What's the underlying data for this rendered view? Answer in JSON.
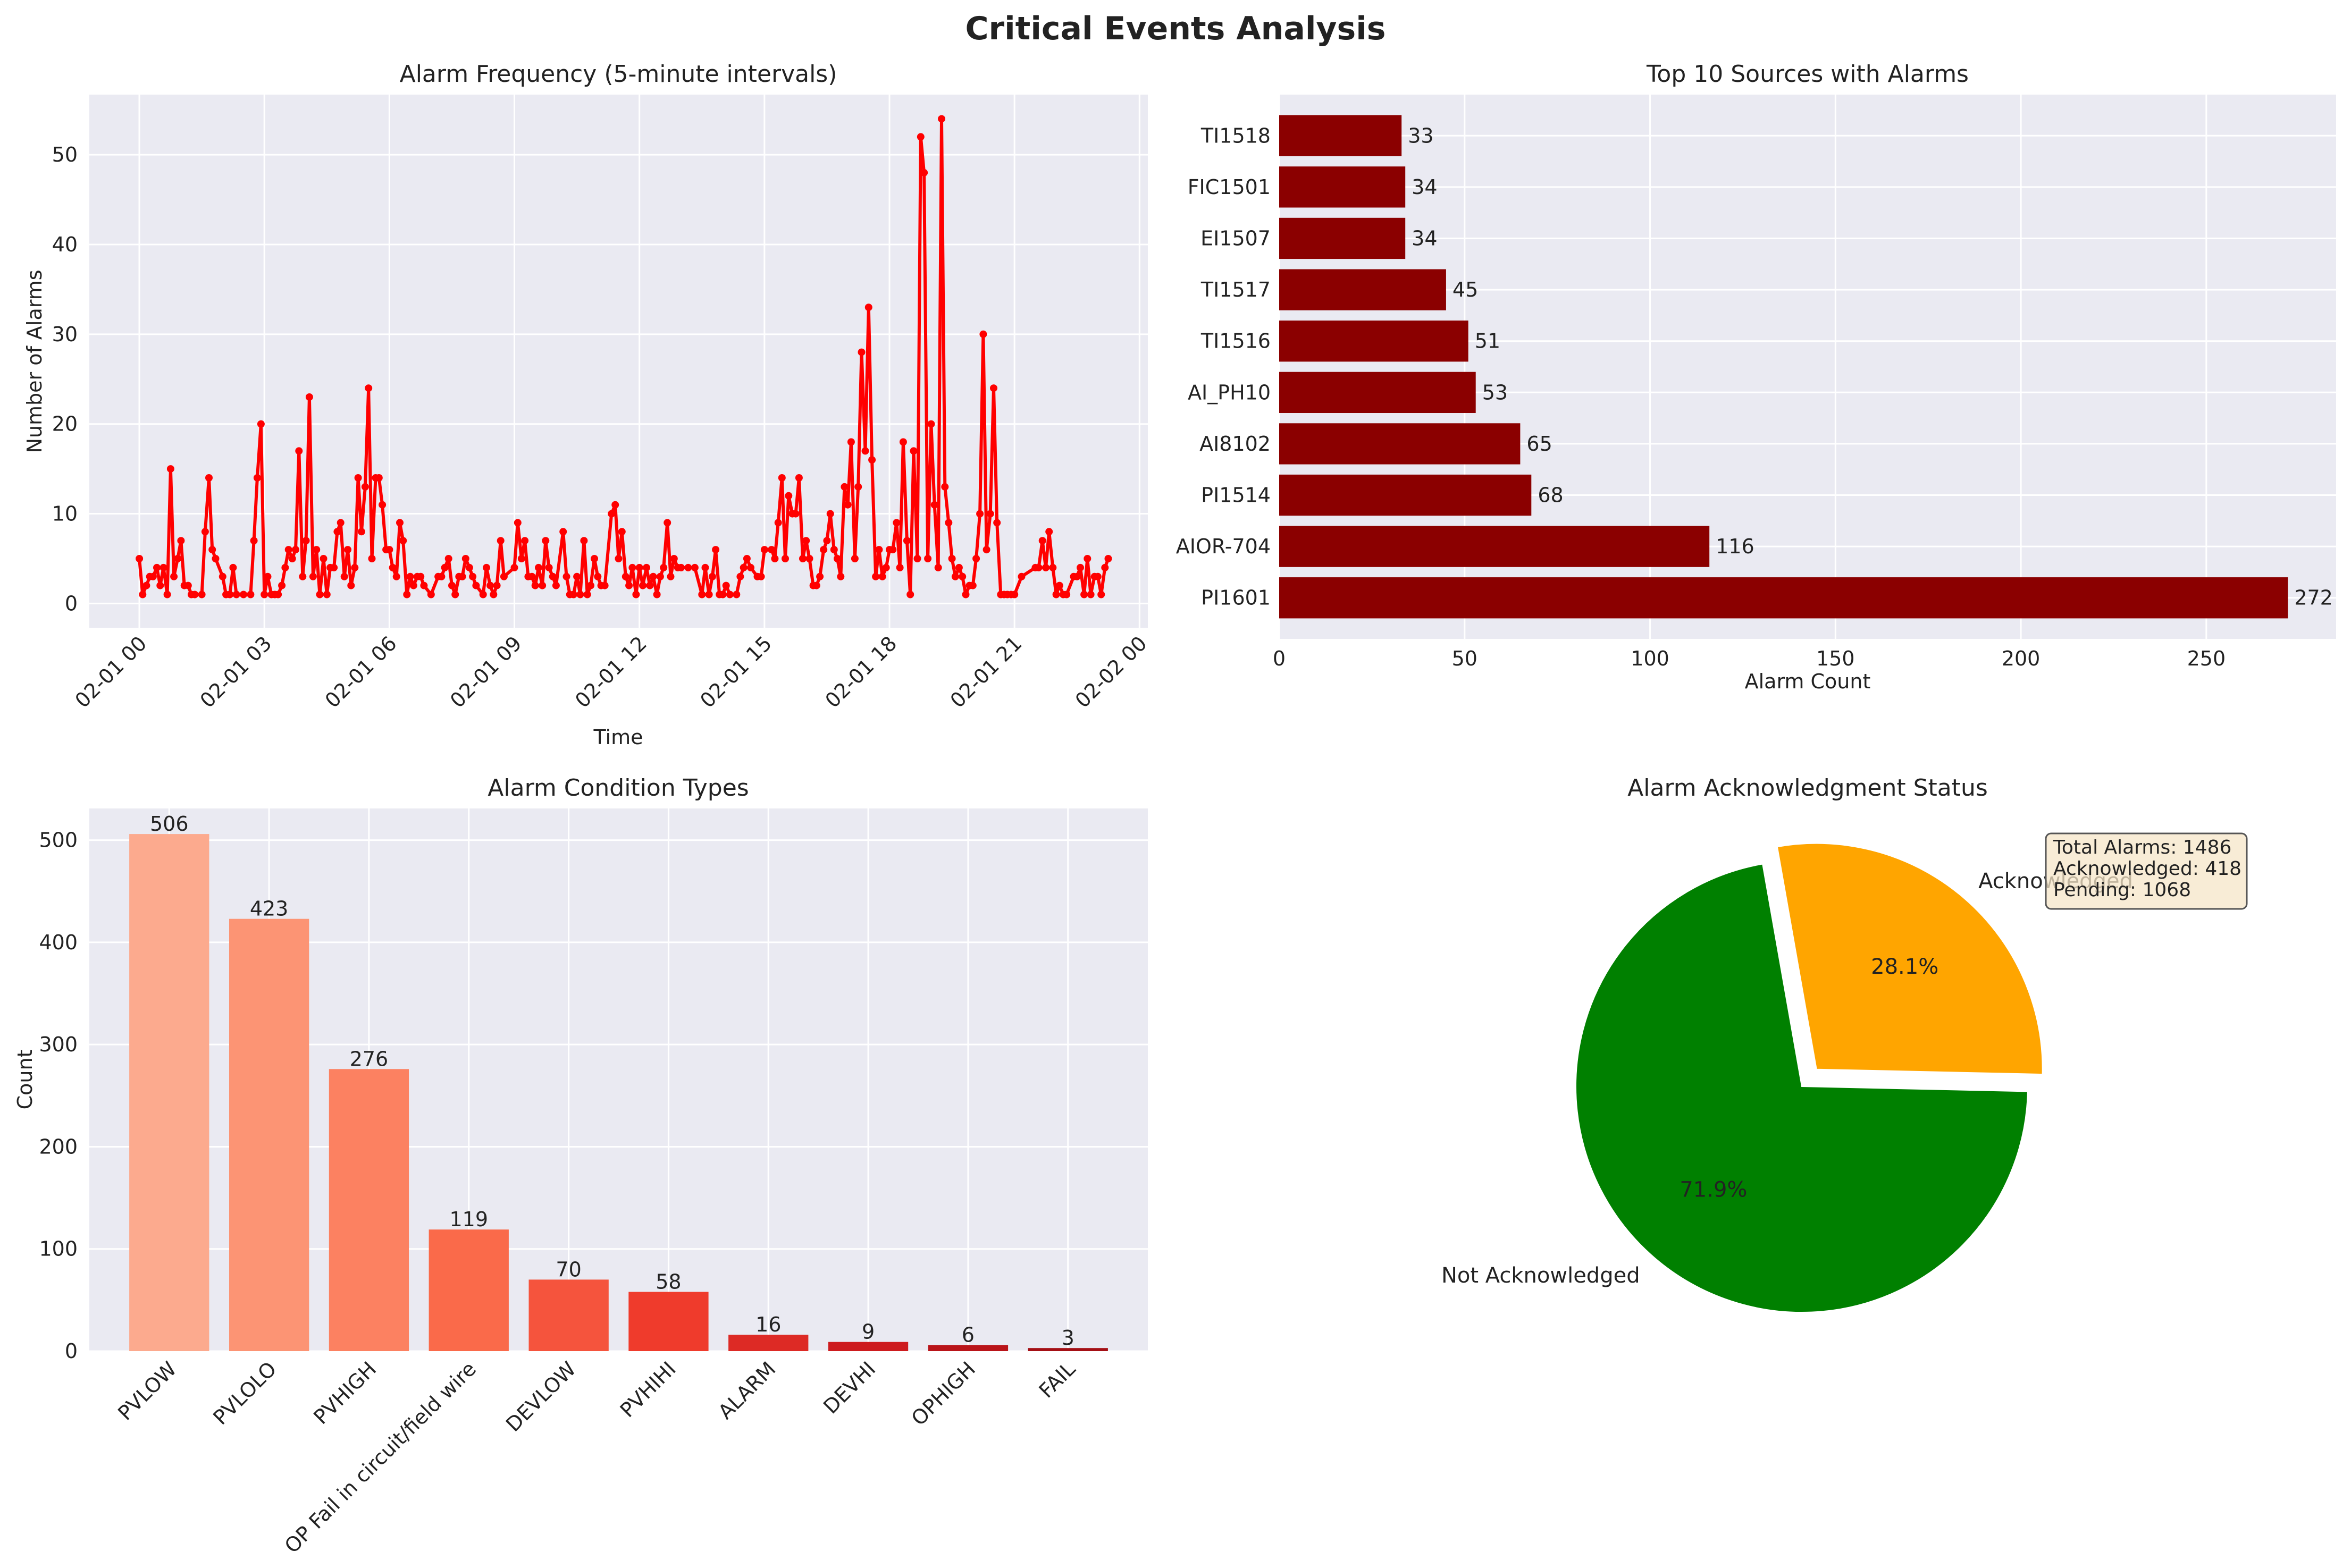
{
  "figure": {
    "title": "Critical Events Analysis",
    "colors": {
      "panel_bg": "#eaeaf2",
      "grid": "#ffffff",
      "text": "#222222"
    }
  },
  "chart_data": [
    {
      "type": "line",
      "title": "Alarm Frequency (5-minute intervals)",
      "xlabel": "Time",
      "ylabel": "Number of Alarms",
      "x_unit": "hours since 02-01 00:00",
      "xlim_hours": [
        -1.2,
        24.2
      ],
      "ylim": [
        -2.7,
        56.7
      ],
      "xticks": [
        {
          "value": 0,
          "label": "02-01 00"
        },
        {
          "value": 3,
          "label": "02-01 03"
        },
        {
          "value": 6,
          "label": "02-01 06"
        },
        {
          "value": 9,
          "label": "02-01 09"
        },
        {
          "value": 12,
          "label": "02-01 12"
        },
        {
          "value": 15,
          "label": "02-01 15"
        },
        {
          "value": 18,
          "label": "02-01 18"
        },
        {
          "value": 21,
          "label": "02-01 21"
        },
        {
          "value": 24,
          "label": "02-02 00"
        }
      ],
      "yticks": [
        0,
        10,
        20,
        30,
        40,
        50
      ],
      "color": "#ff0000",
      "points": [
        [
          0.0,
          5
        ],
        [
          0.08,
          1
        ],
        [
          0.17,
          2
        ],
        [
          0.25,
          3
        ],
        [
          0.33,
          3
        ],
        [
          0.42,
          4
        ],
        [
          0.5,
          2
        ],
        [
          0.58,
          4
        ],
        [
          0.67,
          1
        ],
        [
          0.75,
          15
        ],
        [
          0.83,
          3
        ],
        [
          0.92,
          5
        ],
        [
          1.0,
          7
        ],
        [
          1.08,
          2
        ],
        [
          1.17,
          2
        ],
        [
          1.25,
          1
        ],
        [
          1.33,
          1
        ],
        [
          1.5,
          1
        ],
        [
          1.58,
          8
        ],
        [
          1.67,
          14
        ],
        [
          1.75,
          6
        ],
        [
          1.83,
          5
        ],
        [
          2.0,
          3
        ],
        [
          2.08,
          1
        ],
        [
          2.17,
          1
        ],
        [
          2.25,
          4
        ],
        [
          2.33,
          1
        ],
        [
          2.5,
          1
        ],
        [
          2.67,
          1
        ],
        [
          2.75,
          7
        ],
        [
          2.83,
          14
        ],
        [
          2.92,
          20
        ],
        [
          3.0,
          1
        ],
        [
          3.08,
          3
        ],
        [
          3.17,
          1
        ],
        [
          3.25,
          1
        ],
        [
          3.33,
          1
        ],
        [
          3.42,
          2
        ],
        [
          3.5,
          4
        ],
        [
          3.58,
          6
        ],
        [
          3.67,
          5
        ],
        [
          3.75,
          6
        ],
        [
          3.83,
          17
        ],
        [
          3.92,
          3
        ],
        [
          4.0,
          7
        ],
        [
          4.08,
          23
        ],
        [
          4.17,
          3
        ],
        [
          4.25,
          6
        ],
        [
          4.33,
          1
        ],
        [
          4.42,
          5
        ],
        [
          4.5,
          1
        ],
        [
          4.58,
          4
        ],
        [
          4.67,
          4
        ],
        [
          4.75,
          8
        ],
        [
          4.83,
          9
        ],
        [
          4.92,
          3
        ],
        [
          5.0,
          6
        ],
        [
          5.08,
          2
        ],
        [
          5.17,
          4
        ],
        [
          5.25,
          14
        ],
        [
          5.33,
          8
        ],
        [
          5.42,
          13
        ],
        [
          5.5,
          24
        ],
        [
          5.58,
          5
        ],
        [
          5.67,
          14
        ],
        [
          5.75,
          14
        ],
        [
          5.83,
          11
        ],
        [
          5.92,
          6
        ],
        [
          6.0,
          6
        ],
        [
          6.08,
          4
        ],
        [
          6.17,
          3
        ],
        [
          6.25,
          9
        ],
        [
          6.33,
          7
        ],
        [
          6.42,
          1
        ],
        [
          6.5,
          3
        ],
        [
          6.58,
          2
        ],
        [
          6.67,
          3
        ],
        [
          6.75,
          3
        ],
        [
          6.83,
          2
        ],
        [
          7.0,
          1
        ],
        [
          7.17,
          3
        ],
        [
          7.25,
          3
        ],
        [
          7.33,
          4
        ],
        [
          7.42,
          5
        ],
        [
          7.5,
          2
        ],
        [
          7.58,
          1
        ],
        [
          7.67,
          3
        ],
        [
          7.75,
          3
        ],
        [
          7.83,
          5
        ],
        [
          7.92,
          4
        ],
        [
          8.0,
          3
        ],
        [
          8.08,
          2
        ],
        [
          8.25,
          1
        ],
        [
          8.33,
          4
        ],
        [
          8.42,
          2
        ],
        [
          8.5,
          1
        ],
        [
          8.58,
          2
        ],
        [
          8.67,
          7
        ],
        [
          8.75,
          3
        ],
        [
          9.0,
          4
        ],
        [
          9.08,
          9
        ],
        [
          9.17,
          5
        ],
        [
          9.25,
          7
        ],
        [
          9.33,
          3
        ],
        [
          9.42,
          3
        ],
        [
          9.5,
          2
        ],
        [
          9.58,
          4
        ],
        [
          9.67,
          2
        ],
        [
          9.75,
          7
        ],
        [
          9.83,
          4
        ],
        [
          9.92,
          3
        ],
        [
          10.0,
          2
        ],
        [
          10.17,
          8
        ],
        [
          10.25,
          3
        ],
        [
          10.33,
          1
        ],
        [
          10.42,
          1
        ],
        [
          10.5,
          3
        ],
        [
          10.58,
          1
        ],
        [
          10.67,
          7
        ],
        [
          10.75,
          1
        ],
        [
          10.83,
          2
        ],
        [
          10.92,
          5
        ],
        [
          11.0,
          3
        ],
        [
          11.08,
          2
        ],
        [
          11.17,
          2
        ],
        [
          11.33,
          10
        ],
        [
          11.42,
          11
        ],
        [
          11.5,
          5
        ],
        [
          11.58,
          8
        ],
        [
          11.67,
          3
        ],
        [
          11.75,
          2
        ],
        [
          11.83,
          4
        ],
        [
          11.92,
          1
        ],
        [
          12.0,
          4
        ],
        [
          12.08,
          2
        ],
        [
          12.17,
          4
        ],
        [
          12.25,
          2
        ],
        [
          12.33,
          3
        ],
        [
          12.42,
          1
        ],
        [
          12.5,
          3
        ],
        [
          12.58,
          4
        ],
        [
          12.67,
          9
        ],
        [
          12.75,
          3
        ],
        [
          12.83,
          5
        ],
        [
          12.92,
          4
        ],
        [
          13.0,
          4
        ],
        [
          13.17,
          4
        ],
        [
          13.33,
          4
        ],
        [
          13.5,
          1
        ],
        [
          13.58,
          4
        ],
        [
          13.67,
          1
        ],
        [
          13.75,
          3
        ],
        [
          13.83,
          6
        ],
        [
          13.92,
          1
        ],
        [
          14.0,
          1
        ],
        [
          14.08,
          2
        ],
        [
          14.17,
          1
        ],
        [
          14.33,
          1
        ],
        [
          14.42,
          3
        ],
        [
          14.5,
          4
        ],
        [
          14.58,
          5
        ],
        [
          14.67,
          4
        ],
        [
          14.83,
          3
        ],
        [
          14.92,
          3
        ],
        [
          15.0,
          6
        ],
        [
          15.17,
          6
        ],
        [
          15.25,
          5
        ],
        [
          15.33,
          9
        ],
        [
          15.42,
          14
        ],
        [
          15.5,
          5
        ],
        [
          15.58,
          12
        ],
        [
          15.67,
          10
        ],
        [
          15.75,
          10
        ],
        [
          15.83,
          14
        ],
        [
          15.92,
          5
        ],
        [
          16.0,
          7
        ],
        [
          16.08,
          5
        ],
        [
          16.17,
          2
        ],
        [
          16.25,
          2
        ],
        [
          16.33,
          3
        ],
        [
          16.42,
          6
        ],
        [
          16.5,
          7
        ],
        [
          16.58,
          10
        ],
        [
          16.67,
          6
        ],
        [
          16.75,
          5
        ],
        [
          16.83,
          3
        ],
        [
          16.92,
          13
        ],
        [
          17.0,
          11
        ],
        [
          17.08,
          18
        ],
        [
          17.17,
          5
        ],
        [
          17.25,
          13
        ],
        [
          17.33,
          28
        ],
        [
          17.42,
          17
        ],
        [
          17.5,
          33
        ],
        [
          17.58,
          16
        ],
        [
          17.67,
          3
        ],
        [
          17.75,
          6
        ],
        [
          17.83,
          3
        ],
        [
          17.92,
          4
        ],
        [
          18.0,
          6
        ],
        [
          18.08,
          6
        ],
        [
          18.17,
          9
        ],
        [
          18.25,
          4
        ],
        [
          18.33,
          18
        ],
        [
          18.42,
          7
        ],
        [
          18.5,
          1
        ],
        [
          18.58,
          17
        ],
        [
          18.67,
          5
        ],
        [
          18.75,
          52
        ],
        [
          18.83,
          48
        ],
        [
          18.92,
          5
        ],
        [
          19.0,
          20
        ],
        [
          19.08,
          11
        ],
        [
          19.17,
          4
        ],
        [
          19.25,
          54
        ],
        [
          19.33,
          13
        ],
        [
          19.42,
          9
        ],
        [
          19.5,
          5
        ],
        [
          19.58,
          3
        ],
        [
          19.67,
          4
        ],
        [
          19.75,
          3
        ],
        [
          19.83,
          1
        ],
        [
          19.92,
          2
        ],
        [
          20.0,
          2
        ],
        [
          20.08,
          5
        ],
        [
          20.17,
          10
        ],
        [
          20.25,
          30
        ],
        [
          20.33,
          6
        ],
        [
          20.42,
          10
        ],
        [
          20.5,
          24
        ],
        [
          20.58,
          9
        ],
        [
          20.67,
          1
        ],
        [
          20.75,
          1
        ],
        [
          20.83,
          1
        ],
        [
          20.92,
          1
        ],
        [
          21.0,
          1
        ],
        [
          21.17,
          3
        ],
        [
          21.5,
          4
        ],
        [
          21.58,
          4
        ],
        [
          21.67,
          7
        ],
        [
          21.75,
          4
        ],
        [
          21.83,
          8
        ],
        [
          21.92,
          4
        ],
        [
          22.0,
          1
        ],
        [
          22.08,
          2
        ],
        [
          22.17,
          1
        ],
        [
          22.25,
          1
        ],
        [
          22.42,
          3
        ],
        [
          22.5,
          3
        ],
        [
          22.58,
          4
        ],
        [
          22.67,
          1
        ],
        [
          22.75,
          5
        ],
        [
          22.83,
          1
        ],
        [
          22.92,
          3
        ],
        [
          23.0,
          3
        ],
        [
          23.08,
          1
        ],
        [
          23.17,
          4
        ],
        [
          23.25,
          5
        ]
      ]
    },
    {
      "type": "bar",
      "orientation": "horizontal",
      "title": "Top 10 Sources with Alarms",
      "xlabel": "Alarm Count",
      "xlim": [
        0,
        285
      ],
      "xticks": [
        0,
        50,
        100,
        150,
        200,
        250
      ],
      "color": "#8b0000",
      "categories": [
        "TI1518",
        "FIC1501",
        "EI1507",
        "TI1517",
        "TI1516",
        "AI_PH10",
        "AI8102",
        "PI1514",
        "AIOR-704",
        "PI1601"
      ],
      "values": [
        33,
        34,
        34,
        45,
        51,
        53,
        65,
        68,
        116,
        272
      ]
    },
    {
      "type": "bar",
      "title": "Alarm Condition Types",
      "ylabel": "Count",
      "ylim": [
        0,
        531
      ],
      "yticks": [
        0,
        100,
        200,
        300,
        400,
        500
      ],
      "categories": [
        "PVLOW",
        "PVLOLO",
        "PVHIGH",
        "OP Fail in circuit/field wire",
        "DEVLOW",
        "PVHIHI",
        "ALARM",
        "DEVHI",
        "OPHIGH",
        "FAIL"
      ],
      "values": [
        506,
        423,
        276,
        119,
        70,
        58,
        16,
        9,
        6,
        3
      ],
      "colors": [
        "#fcaa8e",
        "#fc9474",
        "#fc8161",
        "#fa6a4a",
        "#f5543d",
        "#ef3b2c",
        "#dd2a25",
        "#cd1b1e",
        "#b91419",
        "#a40f15"
      ]
    },
    {
      "type": "pie",
      "title": "Alarm Acknowledgment Status",
      "slices": [
        {
          "label": "Not Acknowledged",
          "value": 1068,
          "pct_label": "71.9%",
          "color": "#008000"
        },
        {
          "label": "Acknowledged",
          "value": 418,
          "pct_label": "28.1%",
          "color": "#ffa500"
        }
      ],
      "info_box": [
        "Total Alarms: 1486",
        "Acknowledged: 418",
        "Pending: 1068"
      ]
    }
  ]
}
